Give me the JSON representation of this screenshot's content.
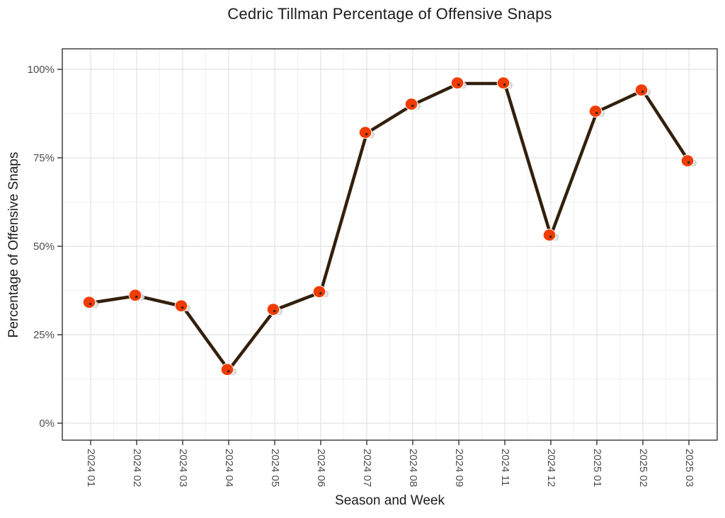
{
  "page": {
    "background": "#FFFFFF"
  },
  "chart_data": {
    "type": "line",
    "title": "Cedric Tillman Percentage of Offensive Snaps",
    "xlabel": "Season and Week",
    "ylabel": "Percentage of Offensive Snaps",
    "categories": [
      "2024 01",
      "2024 02",
      "2024 03",
      "2024 04",
      "2024 05",
      "2024 06",
      "2024 07",
      "2024 08",
      "2024 09",
      "2024 11",
      "2024 12",
      "2025 01",
      "2025 02",
      "2025 03"
    ],
    "values": [
      34,
      36,
      33,
      15,
      32,
      37,
      82,
      90,
      96,
      96,
      53,
      88,
      94,
      74
    ],
    "series": [
      {
        "name": "Cedric Tillman",
        "values": [
          34,
          36,
          33,
          15,
          32,
          37,
          82,
          90,
          96,
          96,
          53,
          88,
          94,
          74
        ]
      }
    ],
    "ylim": [
      0,
      100
    ],
    "yticks": [
      0,
      25,
      50,
      75,
      100
    ],
    "ytick_labels": [
      "0%",
      "25%",
      "50%",
      "75%",
      "100%"
    ],
    "yminor_ticks": [
      12.5,
      37.5,
      62.5,
      87.5
    ],
    "grid": "major and minor gridlines, light grey on white panel",
    "legend": false,
    "marker": {
      "name": "cleveland-browns-helmet-icon",
      "shell_color": "#F03C00",
      "facemask_color": "#C9C9C9",
      "outline_color": "#FFFFFF",
      "ear_hole_color": "#33200C"
    },
    "colors": {
      "line": "#33200C",
      "grid_major": "#E2E2E2",
      "grid_minor": "#F0F0F0",
      "axis_border": "#333333",
      "tick_label": "#4D4D4D",
      "title_text": "#1C1C1C",
      "background": "#FFFFFF"
    }
  }
}
